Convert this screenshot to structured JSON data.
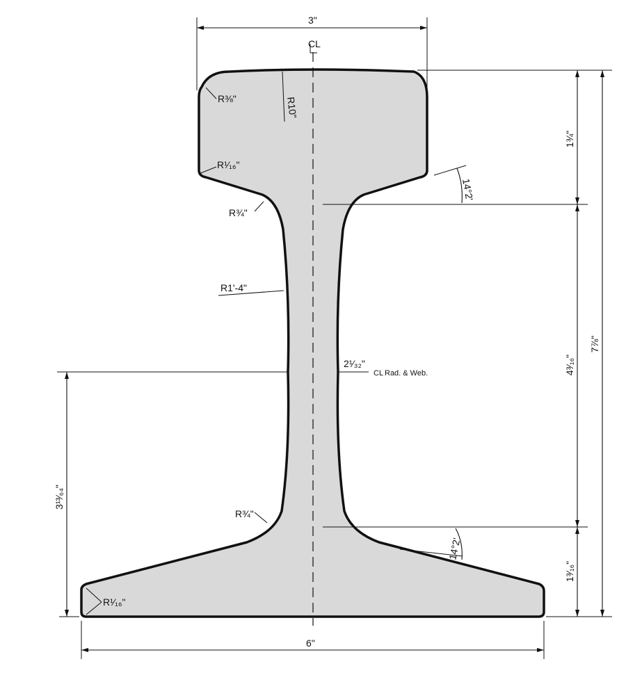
{
  "drawing": {
    "colors": {
      "section_fill": "#d9d9d9",
      "outline": "#111111",
      "line": "#111111",
      "background": "#ffffff"
    },
    "centerline_symbol": "CL",
    "dimensions": {
      "head_width": "3\"",
      "base_width": "6\"",
      "total_height": "7⅞\"",
      "head_depth": "1¾\"",
      "web_height": "4³⁄₁₆\"",
      "base_depth": "1³⁄₁₆\"",
      "neutral_axis_height": "3¹³⁄₆₄\"",
      "web_thickness": "2¹⁄₃₂\""
    },
    "radii": {
      "head_corner": "R⅜\"",
      "head_top": "R10\"",
      "head_under": "R¹⁄₁₆\"",
      "upper_fillet": "R¾\"",
      "web_side": "R1'-4\"",
      "lower_fillet": "R¾\"",
      "base_edge": "R¹⁄₁₆\""
    },
    "angles": {
      "head_slope": "14°2'",
      "base_slope": "14°2'"
    },
    "notes": {
      "web_centerline": "Rad. & Web."
    }
  }
}
